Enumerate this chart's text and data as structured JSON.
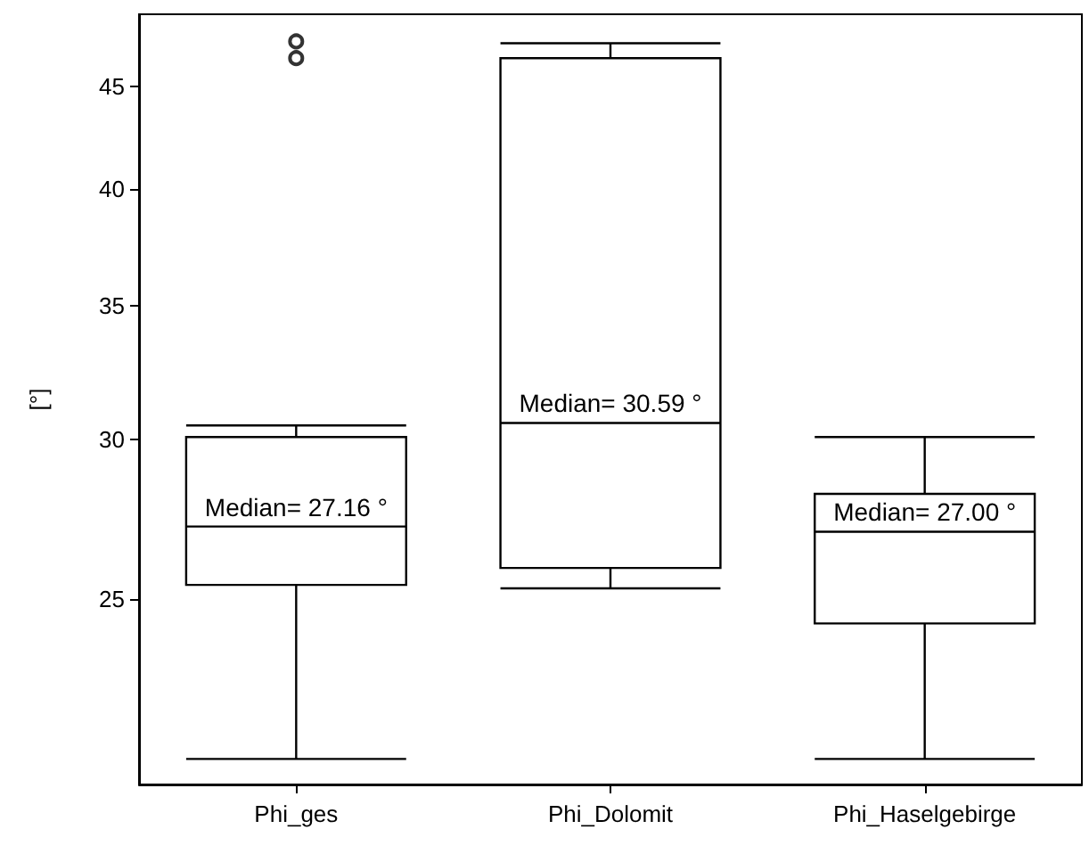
{
  "chart_data": {
    "type": "box",
    "ylabel": "[°]",
    "categories": [
      "Phi_ges",
      "Phi_Dolomit",
      "Phi_Haselgebirge"
    ],
    "boxes": [
      {
        "low": 20.8,
        "q1": 25.4,
        "median": 27.16,
        "q3": 30.1,
        "high": 30.5,
        "outliers": [
          46.5,
          47.4
        ]
      },
      {
        "low": 25.3,
        "q1": 25.9,
        "median": 30.59,
        "q3": 46.5,
        "high": 47.3
      },
      {
        "low": 20.8,
        "q1": 24.3,
        "median": 27.0,
        "q3": 28.2,
        "high": 30.1
      }
    ],
    "annotations": [
      {
        "text": "Median= 27.16 °",
        "x": "Phi_ges",
        "y": 27.16
      },
      {
        "text": "Median= 30.59 °",
        "x": "Phi_Dolomit",
        "y": 30.59
      },
      {
        "text": "Median= 27.00 °",
        "x": "Phi_Haselgebirge",
        "y": 27.0
      }
    ],
    "log": "y",
    "ylim": [
      20.2,
      48.9
    ],
    "yticks": [
      25,
      30,
      35,
      40,
      45
    ],
    "grid": false,
    "color": "#000000"
  }
}
